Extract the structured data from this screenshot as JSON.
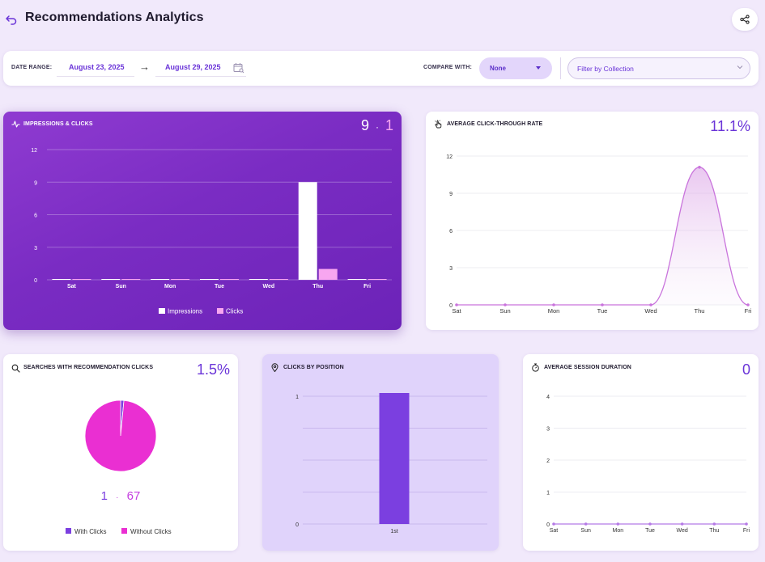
{
  "header": {
    "title": "Recommendations Analytics"
  },
  "filters": {
    "date_range_label": "DATE RANGE:",
    "start_date": "August 23, 2025",
    "arrow": "→",
    "end_date": "August 29, 2025",
    "compare_label": "COMPARE WITH:",
    "compare_value": "None",
    "collection_placeholder": "Filter by Collection"
  },
  "cards": {
    "impressions": {
      "title": "IMPRESSIONS & CLICKS",
      "total_impressions": "9",
      "separator": "·",
      "total_clicks": "1"
    },
    "ctr": {
      "title": "AVERAGE CLICK-THROUGH RATE",
      "value": "11.1%"
    },
    "searches": {
      "title": "SEARCHES WITH RECOMMENDATION CLICKS",
      "value": "1.5%",
      "with_count": "1",
      "separator": "·",
      "without_count": "67"
    },
    "position": {
      "title": "CLICKS BY POSITION"
    },
    "session": {
      "title": "AVERAGE SESSION DURATION",
      "value": "0"
    }
  },
  "colors": {
    "accent": "#6a34d8",
    "impressions_bar": "#ffffff",
    "clicks_bar": "#f7a6f0",
    "ctr_line": "#c974dc",
    "with_clicks": "#7b3fe0",
    "without_clicks": "#ea2fd2",
    "position_bar": "#7b3fe0",
    "session_line": "#b57ae6"
  },
  "icons": {
    "back": "undo-arrow-icon",
    "share": "share-icon",
    "calendar": "calendar-search-icon",
    "impressions": "pulse-icon",
    "ctr": "hand-pointer-icon",
    "searches": "search-icon",
    "position": "map-pin-icon",
    "session": "stopwatch-icon"
  },
  "chart_data": [
    {
      "id": "impressions_clicks",
      "type": "bar",
      "categories": [
        "Sat",
        "Sun",
        "Mon",
        "Tue",
        "Wed",
        "Thu",
        "Fri"
      ],
      "series": [
        {
          "name": "Impressions",
          "values": [
            0,
            0,
            0,
            0,
            0,
            9,
            0
          ]
        },
        {
          "name": "Clicks",
          "values": [
            0,
            0,
            0,
            0,
            0,
            1,
            0
          ]
        }
      ],
      "ylim": [
        0,
        12
      ],
      "yticks": [
        0,
        3,
        6,
        9,
        12
      ],
      "grid": true,
      "legend": "bottom"
    },
    {
      "id": "ctr",
      "type": "area",
      "categories": [
        "Sat",
        "Sun",
        "Mon",
        "Tue",
        "Wed",
        "Thu",
        "Fri"
      ],
      "values": [
        0,
        0,
        0,
        0,
        0,
        11.1,
        0
      ],
      "ylim": [
        0,
        12
      ],
      "yticks": [
        0,
        3,
        6,
        9,
        12
      ],
      "grid": true
    },
    {
      "id": "searches_pie",
      "type": "pie",
      "labels": [
        "With Clicks",
        "Without Clicks"
      ],
      "values": [
        1,
        67
      ],
      "legend": "bottom"
    },
    {
      "id": "clicks_by_position",
      "type": "bar",
      "categories": [
        "1st"
      ],
      "values": [
        1
      ],
      "ylim": [
        0,
        1
      ],
      "yticks": [
        0,
        1
      ],
      "grid": true
    },
    {
      "id": "session_duration",
      "type": "line",
      "categories": [
        "Sat",
        "Sun",
        "Mon",
        "Tue",
        "Wed",
        "Thu",
        "Fri"
      ],
      "values": [
        0,
        0,
        0,
        0,
        0,
        0,
        0
      ],
      "ylim": [
        0,
        4
      ],
      "yticks": [
        0,
        1,
        2,
        3,
        4
      ],
      "grid": true
    }
  ]
}
